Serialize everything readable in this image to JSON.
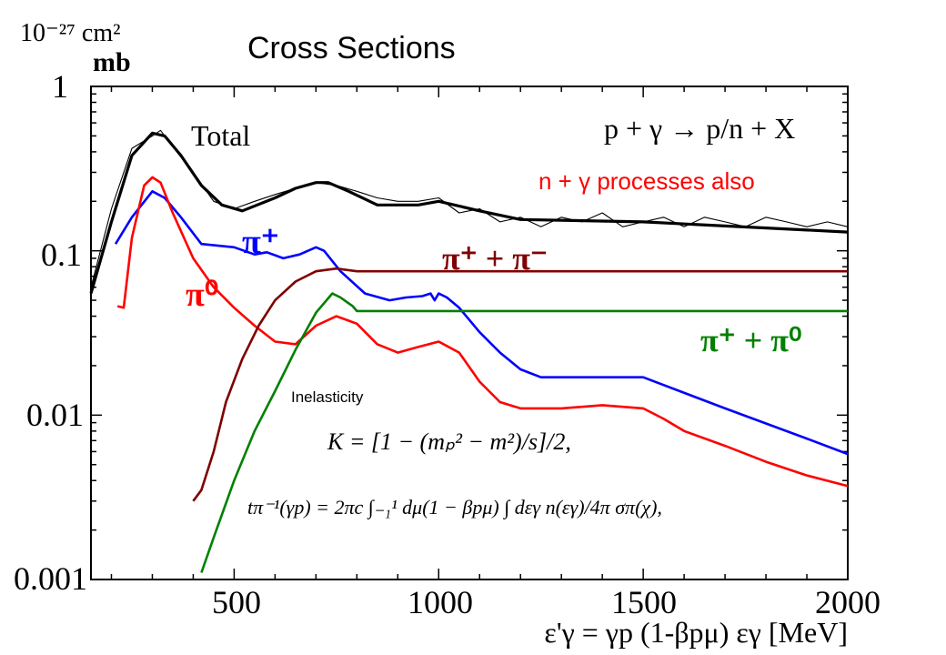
{
  "chart_data": {
    "type": "line",
    "title": "Cross Sections",
    "ylabel_top": "10⁻²⁷ cm²",
    "ylabel": "mb",
    "xlabel": "ε'γ = γp (1-βpμ) εγ  [MeV]",
    "xlim": [
      150,
      2000
    ],
    "ylim": [
      0.001,
      1
    ],
    "yscale": "log",
    "x_ticks": [
      "500",
      "1000",
      "1500",
      "2000"
    ],
    "y_ticks": [
      "1",
      "0.1",
      "0.01",
      "0.001"
    ],
    "process_label": "p + γ  →  p/n + X",
    "note": "n + γ processes also",
    "inelasticity_label": "Inelasticity",
    "formula_K": "K = [1 − (mₚ² − m²)/s]/2,",
    "formula_t": "tπ⁻¹(γp) = 2πc ∫₋₁¹ dμ(1 − βpμ) ∫ dεγ n(εγ)/4π σπ(χ),",
    "series": [
      {
        "name": "Total",
        "color": "#000000",
        "x": [
          150,
          200,
          250,
          300,
          330,
          370,
          420,
          470,
          520,
          600,
          650,
          700,
          730,
          780,
          850,
          950,
          1000,
          1100,
          1200,
          1500,
          2000
        ],
        "y": [
          0.055,
          0.15,
          0.38,
          0.52,
          0.5,
          0.38,
          0.25,
          0.19,
          0.175,
          0.21,
          0.24,
          0.26,
          0.26,
          0.23,
          0.19,
          0.19,
          0.2,
          0.175,
          0.155,
          0.15,
          0.13
        ]
      },
      {
        "name": "Total (data)",
        "color": "#000000",
        "x": [
          150,
          200,
          250,
          300,
          320,
          360,
          400,
          450,
          500,
          550,
          600,
          650,
          700,
          750,
          800,
          850,
          900,
          950,
          1000,
          1050,
          1100,
          1150,
          1200,
          1250,
          1300,
          1350,
          1400,
          1450,
          1500,
          1550,
          1600,
          1650,
          1700,
          1750,
          1800,
          1850,
          1900,
          1950,
          2000
        ],
        "y": [
          0.06,
          0.18,
          0.42,
          0.5,
          0.54,
          0.4,
          0.3,
          0.2,
          0.18,
          0.2,
          0.22,
          0.24,
          0.26,
          0.25,
          0.23,
          0.21,
          0.2,
          0.2,
          0.21,
          0.17,
          0.18,
          0.15,
          0.16,
          0.14,
          0.16,
          0.15,
          0.17,
          0.14,
          0.15,
          0.16,
          0.14,
          0.16,
          0.15,
          0.14,
          0.16,
          0.15,
          0.14,
          0.15,
          0.14
        ]
      },
      {
        "name": "π⁺",
        "color": "#0000ff",
        "x": [
          210,
          250,
          300,
          330,
          370,
          420,
          500,
          550,
          580,
          620,
          660,
          700,
          720,
          760,
          820,
          880,
          920,
          960,
          980,
          990,
          1000,
          1020,
          1050,
          1100,
          1150,
          1200,
          1250,
          1400,
          1500,
          1700,
          1900,
          2000
        ],
        "y": [
          0.11,
          0.16,
          0.23,
          0.21,
          0.16,
          0.11,
          0.105,
          0.095,
          0.098,
          0.09,
          0.095,
          0.105,
          0.1,
          0.075,
          0.055,
          0.05,
          0.052,
          0.053,
          0.055,
          0.05,
          0.055,
          0.052,
          0.045,
          0.032,
          0.024,
          0.019,
          0.017,
          0.017,
          0.017,
          0.011,
          0.0072,
          0.0058
        ]
      },
      {
        "name": "π⁰",
        "color": "#ff0000",
        "x": [
          215,
          230,
          250,
          280,
          300,
          320,
          350,
          400,
          450,
          500,
          550,
          600,
          650,
          700,
          750,
          800,
          850,
          900,
          950,
          1000,
          1050,
          1100,
          1150,
          1200,
          1300,
          1400,
          1500,
          1550,
          1600,
          1700,
          1800,
          1900,
          2000
        ],
        "y": [
          0.046,
          0.045,
          0.12,
          0.25,
          0.28,
          0.26,
          0.17,
          0.09,
          0.06,
          0.045,
          0.035,
          0.028,
          0.027,
          0.035,
          0.04,
          0.036,
          0.027,
          0.024,
          0.026,
          0.028,
          0.024,
          0.016,
          0.012,
          0.011,
          0.011,
          0.0115,
          0.011,
          0.0095,
          0.008,
          0.0065,
          0.0052,
          0.0043,
          0.0037
        ]
      },
      {
        "name": "π⁺ + π⁻",
        "color": "#800000",
        "x": [
          400,
          420,
          450,
          480,
          520,
          560,
          600,
          650,
          700,
          750,
          800,
          2000
        ],
        "y": [
          0.003,
          0.0035,
          0.006,
          0.012,
          0.022,
          0.035,
          0.05,
          0.065,
          0.075,
          0.078,
          0.075,
          0.075
        ]
      },
      {
        "name": "π⁺ + π⁰",
        "color": "#008000",
        "x": [
          420,
          450,
          500,
          550,
          600,
          650,
          700,
          740,
          760,
          790,
          800,
          2000
        ],
        "y": [
          0.0011,
          0.0018,
          0.004,
          0.008,
          0.014,
          0.025,
          0.042,
          0.055,
          0.052,
          0.046,
          0.043,
          0.043
        ]
      }
    ]
  }
}
